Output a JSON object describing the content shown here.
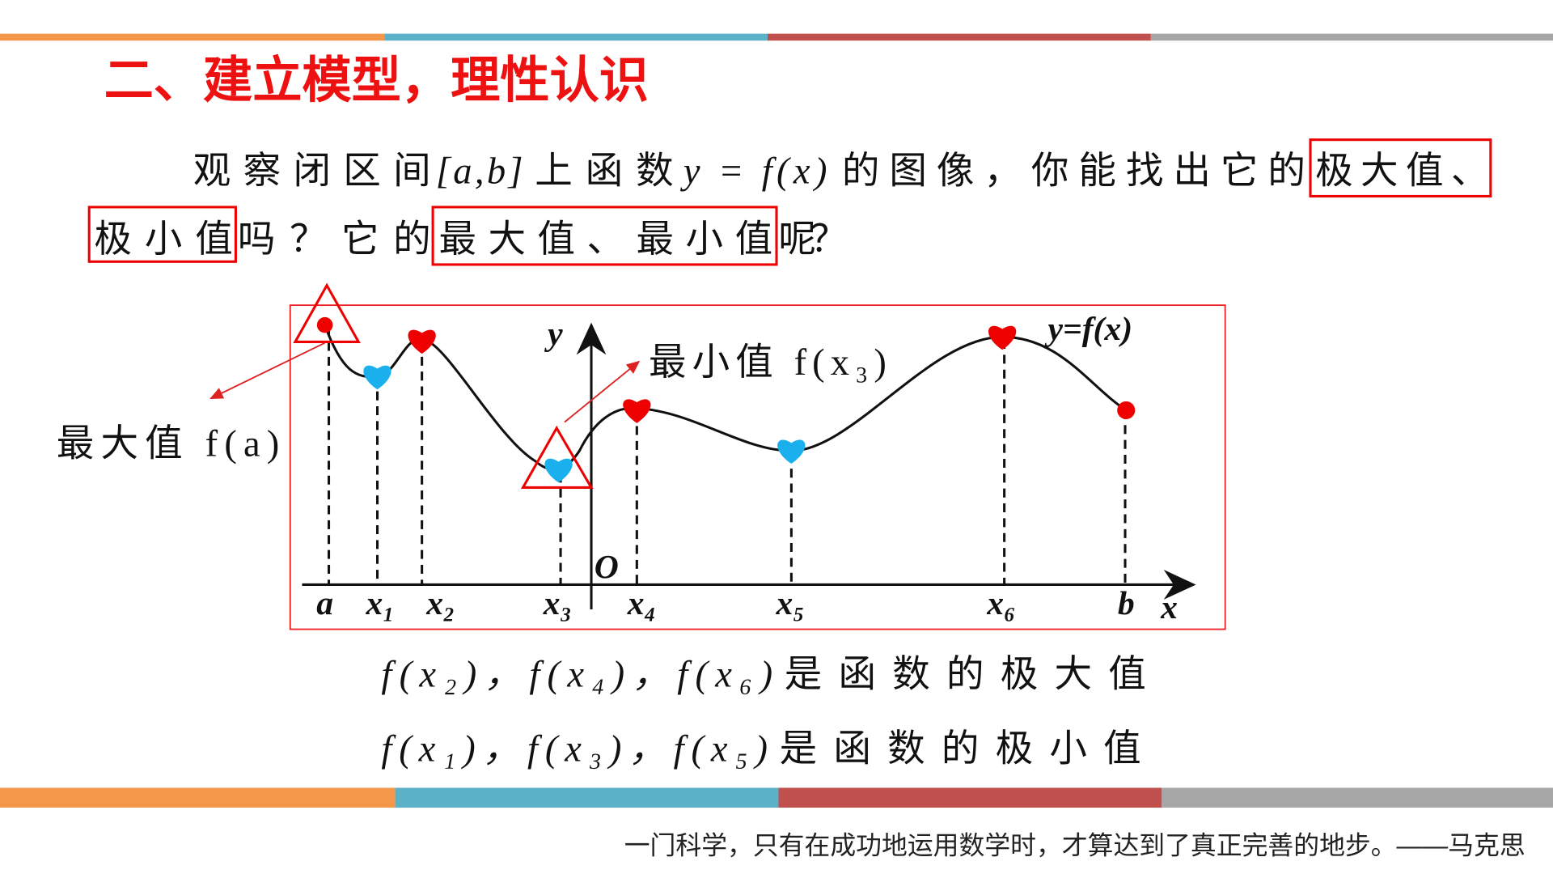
{
  "title": "二、建立模型，理性认识",
  "question": {
    "line1": [
      "观察闭区间",
      "[a,b]",
      "上函数",
      "y = f(x)",
      "的图像，你能找出它的",
      "极大值、"
    ],
    "line2": [
      "极小值",
      "吗？它的",
      "最大值、最小值",
      "呢？"
    ]
  },
  "figure": {
    "y_axis": "y",
    "x_axis": "x",
    "origin": "O",
    "function": "y=f(x)",
    "x_labels": [
      "a",
      "x₁",
      "x₂",
      "x₃",
      "x₄",
      "x₅",
      "x₆",
      "b"
    ],
    "max_note": "最大值 f(a)",
    "min_note": "最小值 f(x₃)"
  },
  "conclusions": [
    {
      "expr": "f(x₂)，f(x₄)，f(x₆)",
      "text": "是函数的极大值"
    },
    {
      "expr": "f(x₁)，f(x₃)，f(x₅)",
      "text": "是函数的极小值"
    }
  ],
  "footer": "一门科学，只有在成功地运用数学时，才算达到了真正完善的地步。——马克思"
}
